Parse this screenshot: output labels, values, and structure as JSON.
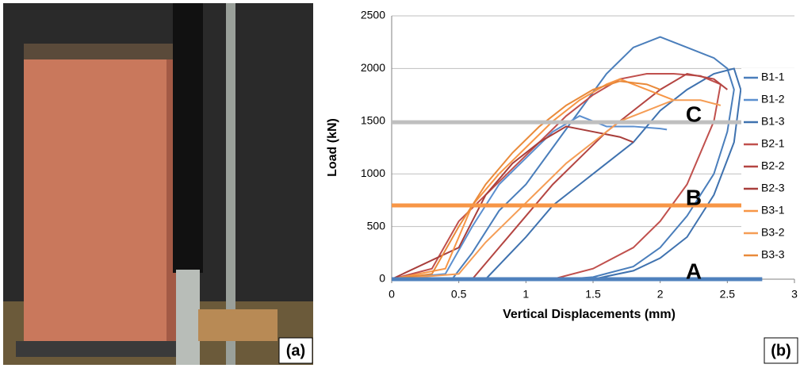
{
  "chart_data": {
    "type": "line",
    "panel_labels": [
      "(a)",
      "(b)"
    ],
    "x_label": "Vertical Displacements (mm)",
    "y_label": "Load (kN)",
    "xlim": [
      0,
      3
    ],
    "xticks": [
      0,
      0.5,
      1,
      1.5,
      2,
      2.5,
      3
    ],
    "ylim": [
      0,
      2500
    ],
    "yticks": [
      0,
      500,
      1000,
      1500,
      2000,
      2500
    ],
    "grid": true,
    "legend": "right",
    "reference_lines": [
      {
        "label": "A",
        "value": 0,
        "color": "#4f81bd"
      },
      {
        "label": "B",
        "value": 700,
        "color": "#f79646"
      },
      {
        "label": "C",
        "value": 1490,
        "color": "#bfbfbf"
      }
    ],
    "series": [
      {
        "name": "B1-1",
        "color": "#4a7ebb",
        "x": [
          0,
          0.45,
          0.6,
          0.8,
          1.0,
          1.2,
          1.4,
          1.6,
          1.8,
          2.0,
          2.2,
          2.4,
          2.5,
          2.55,
          2.5,
          2.4,
          2.2,
          2.0,
          1.8,
          1.5,
          1.3
        ],
        "values": [
          0,
          0,
          250,
          650,
          900,
          1250,
          1600,
          1950,
          2200,
          2300,
          2200,
          2100,
          2000,
          1800,
          1400,
          1000,
          600,
          300,
          120,
          20,
          0
        ]
      },
      {
        "name": "B1-2",
        "color": "#5b8fcf",
        "x": [
          0,
          0.4,
          0.6,
          0.8,
          1.0,
          1.2,
          1.4,
          1.5,
          1.6,
          1.8,
          2.0,
          2.05
        ],
        "values": [
          0,
          50,
          500,
          900,
          1150,
          1400,
          1550,
          1500,
          1450,
          1450,
          1430,
          1420
        ]
      },
      {
        "name": "B1-3",
        "color": "#3f72af",
        "x": [
          0.7,
          1.0,
          1.2,
          1.4,
          1.6,
          1.8,
          2.0,
          2.2,
          2.4,
          2.55,
          2.6,
          2.55,
          2.4,
          2.2,
          2.0,
          1.8,
          1.5,
          1.3,
          1.1
        ],
        "values": [
          0,
          400,
          700,
          900,
          1100,
          1300,
          1600,
          1800,
          1950,
          2000,
          1800,
          1300,
          800,
          400,
          200,
          80,
          0,
          0,
          0
        ]
      },
      {
        "name": "B2-1",
        "color": "#c0504d",
        "x": [
          0,
          0.3,
          0.5,
          0.7,
          0.9,
          1.1,
          1.3,
          1.5,
          1.7,
          1.9,
          2.1,
          2.3,
          2.45,
          2.4,
          2.2,
          2.0,
          1.8,
          1.5,
          1.2,
          1.0
        ],
        "values": [
          0,
          100,
          550,
          800,
          1050,
          1300,
          1550,
          1750,
          1900,
          1950,
          1950,
          1930,
          1850,
          1500,
          900,
          550,
          300,
          100,
          0,
          0
        ]
      },
      {
        "name": "B2-2",
        "color": "#b44542",
        "x": [
          0,
          0.6,
          0.8,
          1.0,
          1.2,
          1.4,
          1.6,
          1.8,
          2.0,
          2.2,
          2.4,
          2.5
        ],
        "values": [
          0,
          0,
          300,
          600,
          900,
          1150,
          1400,
          1600,
          1800,
          1950,
          1900,
          1800
        ]
      },
      {
        "name": "B2-3",
        "color": "#a83e3b",
        "x": [
          0,
          0.5,
          0.7,
          0.9,
          1.1,
          1.3,
          1.5,
          1.7,
          1.8
        ],
        "values": [
          0,
          300,
          800,
          1100,
          1300,
          1450,
          1400,
          1350,
          1300
        ]
      },
      {
        "name": "B3-1",
        "color": "#f79646",
        "x": [
          0,
          0.4,
          0.6,
          0.8,
          1.0,
          1.2,
          1.4,
          1.6,
          1.7,
          1.8,
          2.0,
          2.1
        ],
        "values": [
          0,
          100,
          700,
          1000,
          1250,
          1500,
          1700,
          1850,
          1900,
          1850,
          1750,
          1700
        ]
      },
      {
        "name": "B3-2",
        "color": "#f59d55",
        "x": [
          0,
          0.5,
          0.7,
          0.9,
          1.1,
          1.3,
          1.5,
          1.7,
          1.9,
          2.1,
          2.3,
          2.45
        ],
        "values": [
          0,
          50,
          350,
          600,
          850,
          1100,
          1300,
          1500,
          1600,
          1700,
          1700,
          1650
        ]
      },
      {
        "name": "B3-3",
        "color": "#e98a3a",
        "x": [
          0,
          0.3,
          0.5,
          0.7,
          0.9,
          1.1,
          1.3,
          1.5,
          1.7,
          1.9,
          2.0
        ],
        "values": [
          0,
          50,
          500,
          900,
          1200,
          1450,
          1650,
          1800,
          1880,
          1850,
          1800
        ]
      }
    ]
  }
}
